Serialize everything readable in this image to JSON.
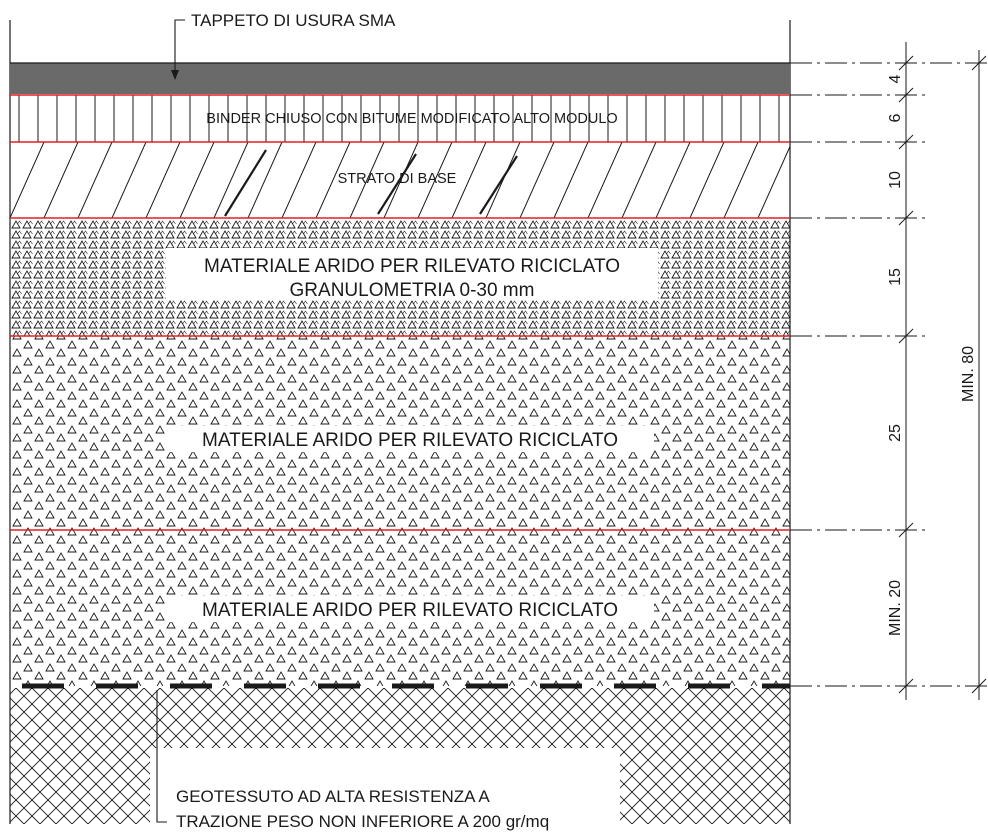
{
  "callouts": {
    "top": "TAPPETO DI USURA SMA",
    "bottom_line1": "GEOTESSUTO AD ALTA RESISTENZA A",
    "bottom_line2": "TRAZIONE PESO NON INFERIORE A 200 gr/mq"
  },
  "layers": [
    {
      "id": "usura",
      "label": "",
      "thickness": "4",
      "hatch": "solid-dark"
    },
    {
      "id": "binder",
      "label": "BINDER CHIUSO CON BITUME MODIFICATO ALTO MODULO",
      "thickness": "6",
      "hatch": "vertical-lines"
    },
    {
      "id": "base",
      "label": "STRATO DI BASE",
      "thickness": "10",
      "hatch": "diagonal-lines"
    },
    {
      "id": "rilevato-fine",
      "label_line1": "MATERIALE ARIDO PER RILEVATO RICICLATO",
      "label_line2": "GRANULOMETRIA 0-30 mm",
      "thickness": "15",
      "hatch": "fine-triangles"
    },
    {
      "id": "rilevato-1",
      "label": "MATERIALE ARIDO PER RILEVATO RICICLATO",
      "thickness": "25",
      "hatch": "triangles"
    },
    {
      "id": "rilevato-2",
      "label": "MATERIALE ARIDO PER RILEVATO RICICLATO",
      "thickness": "MIN. 20",
      "hatch": "triangles"
    },
    {
      "id": "terreno",
      "label": "",
      "thickness": "",
      "hatch": "crosshatch"
    }
  ],
  "total_dimension": "MIN. 80",
  "colors": {
    "interface_line": "#e02020",
    "usura_fill": "#6a6a6a",
    "line": "#1a1a1a"
  }
}
